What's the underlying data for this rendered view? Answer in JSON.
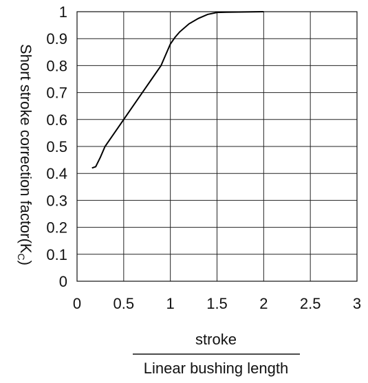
{
  "chart_data": {
    "type": "line",
    "ylabel_main": "Short stroke correction factor(K",
    "ylabel_sub": "C",
    "ylabel_end": ")",
    "xlabel_numerator": "stroke",
    "xlabel_denominator": "Linear bushing length",
    "xlim": [
      0,
      3
    ],
    "ylim": [
      0,
      1
    ],
    "x_ticks": [
      "0",
      "0.5",
      "1",
      "1.5",
      "2",
      "2.5",
      "3"
    ],
    "y_ticks": [
      "0",
      "0.1",
      "0.2",
      "0.3",
      "0.4",
      "0.5",
      "0.6",
      "0.7",
      "0.8",
      "0.9",
      "1"
    ],
    "grid": true,
    "series": [
      {
        "x": [
          0.16,
          0.2,
          0.25,
          0.3,
          0.4,
          0.5,
          0.6,
          0.7,
          0.8,
          0.9,
          1.0,
          1.05,
          1.1,
          1.2,
          1.3,
          1.4,
          1.5,
          1.6,
          1.8,
          2.0
        ],
        "y": [
          0.42,
          0.425,
          0.46,
          0.5,
          0.55,
          0.6,
          0.65,
          0.7,
          0.75,
          0.8,
          0.88,
          0.905,
          0.925,
          0.955,
          0.975,
          0.99,
          0.997,
          0.998,
          0.999,
          1.0
        ]
      }
    ]
  }
}
